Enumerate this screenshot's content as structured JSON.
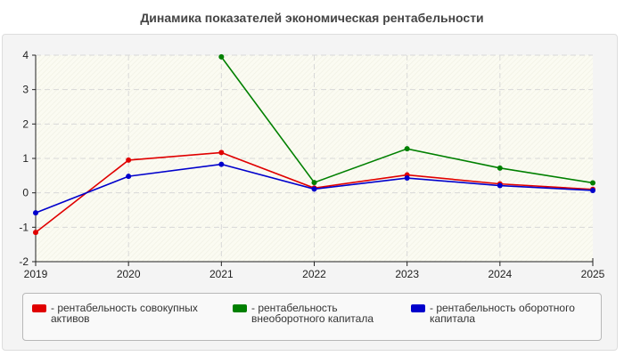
{
  "chart_data": {
    "type": "line",
    "title": "Динамика показателей экономическая рентабельности",
    "x": [
      "2019",
      "2020",
      "2021",
      "2022",
      "2023",
      "2024",
      "2025"
    ],
    "ylim": [
      -2,
      4
    ],
    "yticks": [
      "-2",
      "-1",
      "0",
      "1",
      "2",
      "3",
      "4"
    ],
    "grid": true,
    "legend_position": "bottom",
    "series": [
      {
        "name": "- рентабельность совокупных активов",
        "color": "#e00000",
        "values": [
          -1.15,
          0.95,
          1.17,
          0.14,
          0.52,
          0.26,
          0.1
        ]
      },
      {
        "name": "- рентабельность внеоборотного капитала",
        "color": "#008000",
        "values": [
          null,
          null,
          3.95,
          0.3,
          1.28,
          0.72,
          0.29
        ]
      },
      {
        "name": "- рентабельность оборотного капитала",
        "color": "#0000cc",
        "values": [
          -0.58,
          0.48,
          0.83,
          0.11,
          0.43,
          0.21,
          0.07
        ]
      }
    ]
  }
}
